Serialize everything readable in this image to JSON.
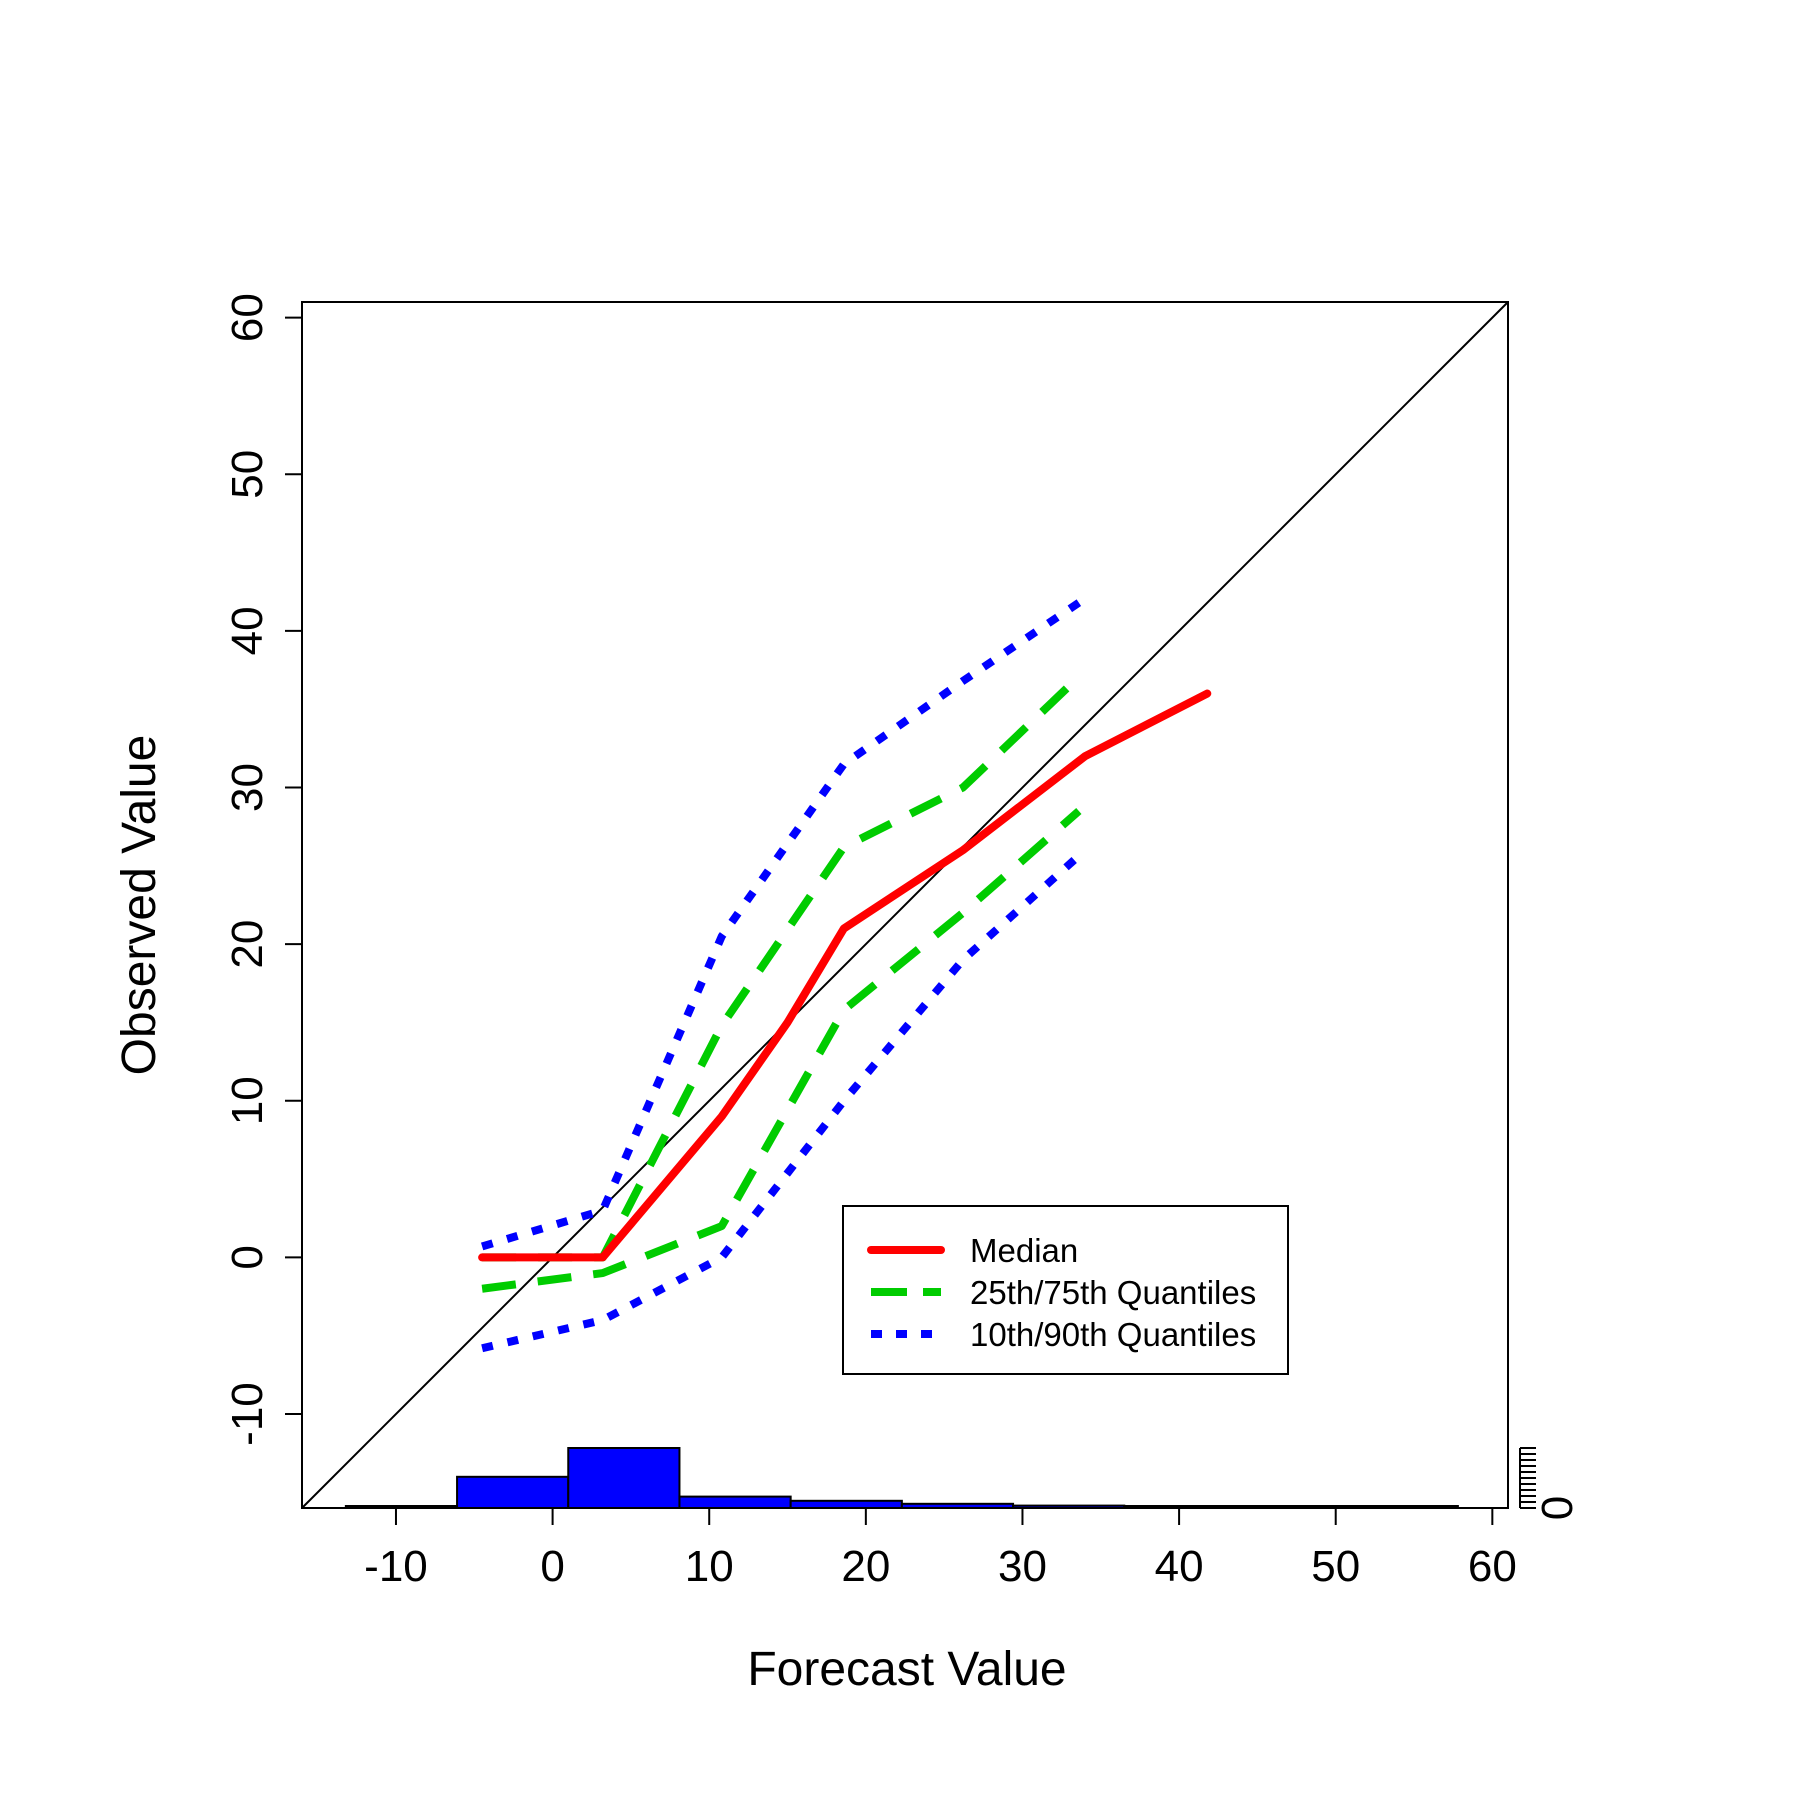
{
  "chart_data": {
    "type": "line",
    "xlabel": "Forecast Value",
    "ylabel": "Observed Value",
    "xlim": [
      -16,
      61
    ],
    "ylim": [
      -16,
      61
    ],
    "x_ticks": [
      -10,
      0,
      10,
      20,
      30,
      40,
      50,
      60
    ],
    "y_ticks": [
      -10,
      0,
      10,
      20,
      30,
      40,
      50,
      60
    ],
    "x_tick_labels": [
      "-10",
      "0",
      "10",
      "20",
      "30",
      "40",
      "50",
      "60"
    ],
    "y_tick_labels": [
      "-10",
      "0",
      "10",
      "20",
      "30",
      "40",
      "50",
      "60"
    ],
    "reference_line": {
      "type": "identity",
      "color": "#000000"
    },
    "series": [
      {
        "name": "Median",
        "color": "#ff0000",
        "style": "solid",
        "x": [
          -4.5,
          3.2,
          10.8,
          15.0,
          18.6,
          26.2,
          34.0,
          41.8
        ],
        "y": [
          0.0,
          0.0,
          9.0,
          15.0,
          21.0,
          26.0,
          32.0,
          36.0
        ]
      },
      {
        "name": "25th/75th Quantiles",
        "part": "upper",
        "color": "#00cc00",
        "style": "dashed",
        "x": [
          -4.5,
          3.2,
          10.8,
          18.6,
          26.2,
          33.0
        ],
        "y": [
          0.0,
          0.0,
          14.8,
          26.2,
          30.0,
          36.5
        ]
      },
      {
        "name": "25th/75th Quantiles",
        "part": "lower",
        "color": "#00cc00",
        "style": "dashed",
        "x": [
          -4.5,
          3.2,
          10.8,
          18.6,
          26.2,
          33.6
        ],
        "y": [
          -2.0,
          -1.0,
          2.0,
          15.8,
          22.0,
          28.5
        ]
      },
      {
        "name": "10th/90th Quantiles",
        "part": "upper",
        "color": "#0000ff",
        "style": "dotted",
        "x": [
          -4.5,
          3.2,
          10.8,
          18.6,
          26.2,
          33.6
        ],
        "y": [
          0.7,
          3.0,
          20.5,
          31.5,
          36.8,
          41.8
        ]
      },
      {
        "name": "10th/90th Quantiles",
        "part": "lower",
        "color": "#0000ff",
        "style": "dotted",
        "x": [
          -4.5,
          3.2,
          10.8,
          18.6,
          26.2,
          34.0
        ],
        "y": [
          -5.8,
          -4.0,
          0.0,
          10.0,
          19.0,
          26.0
        ]
      }
    ],
    "histogram": {
      "color": "#0000ff",
      "baseline_label": "0",
      "bin_edges": [
        -13.2,
        -6.1,
        1.0,
        8.1,
        15.2,
        22.3,
        29.4,
        36.5,
        43.6,
        50.7,
        57.8
      ],
      "relative_heights": [
        0.02,
        0.52,
        1.0,
        0.19,
        0.12,
        0.07,
        0.04,
        0.02,
        0.01,
        0.01
      ]
    },
    "legend": {
      "position": "lower-right-inside",
      "entries": [
        {
          "label": "Median",
          "color": "#ff0000",
          "style": "solid"
        },
        {
          "label": "25th/75th Quantiles",
          "color": "#00cc00",
          "style": "dashed"
        },
        {
          "label": "10th/90th Quantiles",
          "color": "#0000ff",
          "style": "dotted"
        }
      ]
    },
    "grid": false
  }
}
